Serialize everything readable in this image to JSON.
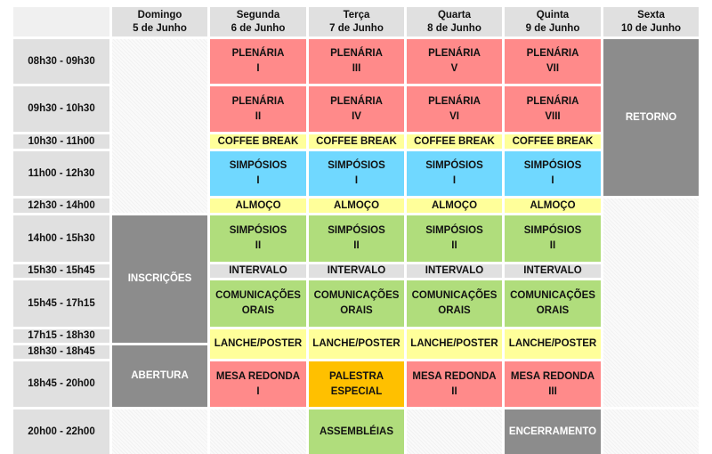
{
  "days": [
    {
      "name": "Domingo",
      "date": "5 de Junho"
    },
    {
      "name": "Segunda",
      "date": "6 de Junho"
    },
    {
      "name": "Terça",
      "date": "7 de Junho"
    },
    {
      "name": "Quarta",
      "date": "8 de Junho"
    },
    {
      "name": "Quinta",
      "date": "9 de Junho"
    },
    {
      "name": "Sexta",
      "date": "10 de Junho"
    }
  ],
  "times": [
    "08h30 - 09h30",
    "09h30 - 10h30",
    "10h30 - 11h00",
    "11h00 - 12h30",
    "12h30 - 14h00",
    "14h00 - 15h30",
    "15h30 - 15h45",
    "15h45 - 17h15",
    "17h15 - 18h30",
    "18h30 - 18h45",
    "18h45 - 20h00",
    "20h00 - 22h00"
  ],
  "labels": {
    "plenaria": "PLENÁRIA",
    "coffee": "COFFEE BREAK",
    "simposios": "SIMPÓSIOS",
    "almoco": "ALMOÇO",
    "intervalo": "INTERVALO",
    "comunicacoes": "COMUNICAÇÕES",
    "orais": "ORAIS",
    "lanche": "LANCHE/POSTER",
    "mesa": "MESA REDONDA",
    "palestra": "PALESTRA",
    "especial": "ESPECIAL",
    "assembleias": "ASSEMBLÉIAS",
    "retorno": "RETORNO",
    "inscricoes": "INSCRIÇÕES",
    "abertura": "ABERTURA",
    "encerramento": "ENCERRAMENTO"
  },
  "numerals": {
    "I": "I",
    "II": "II",
    "III": "III",
    "IV": "IV",
    "V": "V",
    "VI": "VI",
    "VII": "VII",
    "VIII": "VIII"
  },
  "colors": {
    "plenaria": "#ff8a8a",
    "break": "#ffff9a",
    "simposio_i": "#70d8ff",
    "simposio_ii": "#b0dd7c",
    "especial": "#ffc000",
    "admin": "#8c8c8c",
    "header": "#e0e0e0"
  }
}
